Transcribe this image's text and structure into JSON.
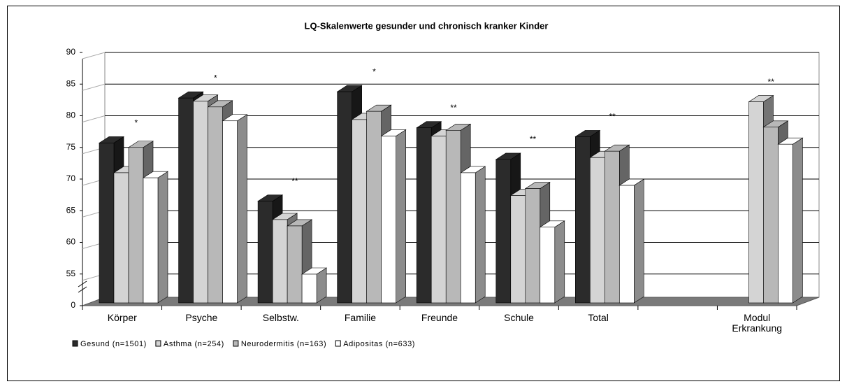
{
  "chart_data": {
    "type": "bar3d",
    "title": "LQ-Skalenwerte gesunder und chronisch kranker Kinder",
    "categories": [
      "Körper",
      "Psyche",
      "Selbstw.",
      "Familie",
      "Freunde",
      "Schule",
      "Total",
      null,
      "Modul Erkrankung"
    ],
    "annotations": [
      "*",
      "*",
      "**",
      "*",
      "**",
      "**",
      "**",
      null,
      "**"
    ],
    "series": [
      {
        "name": "Gesund (n=1501)",
        "color": "#2b2b2b",
        "values": [
          75.7,
          82.8,
          66.5,
          83.8,
          78.1,
          73.1,
          76.7,
          null,
          null
        ]
      },
      {
        "name": "Asthma (n=254)",
        "color": "#d4d4d4",
        "values": [
          71.0,
          82.3,
          63.6,
          79.4,
          76.8,
          67.4,
          73.4,
          null,
          82.2
        ]
      },
      {
        "name": "Neurodermitis (n=163)",
        "color": "#b8b8b8",
        "values": [
          75.0,
          81.4,
          62.6,
          80.7,
          77.7,
          68.5,
          74.4,
          null,
          78.2
        ]
      },
      {
        "name": "Adipositas (n=633)",
        "color": "#ffffff",
        "values": [
          70.2,
          79.2,
          54.7,
          76.8,
          71.0,
          62.4,
          69.0,
          null,
          75.5
        ]
      }
    ],
    "ylim": [
      0,
      90
    ],
    "yticks": [
      0,
      55,
      60,
      65,
      70,
      75,
      80,
      85,
      90
    ],
    "y_break": true,
    "grid": true,
    "legend": "bottom-left"
  }
}
